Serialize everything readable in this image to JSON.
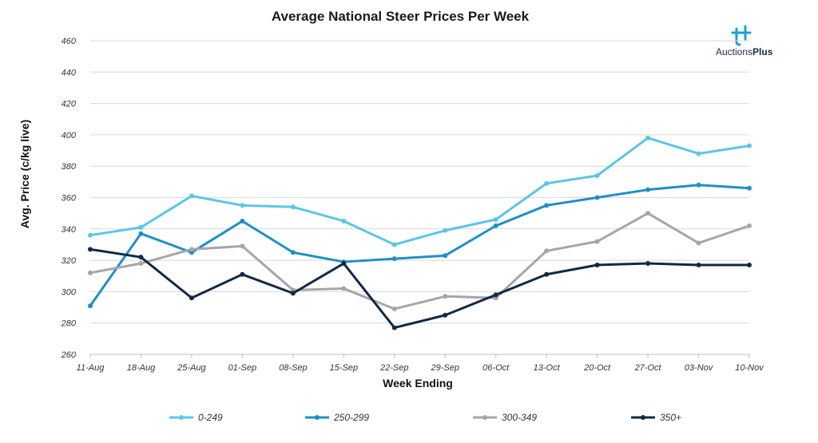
{
  "logo": {
    "text_light": "Auctions",
    "text_bold": "Plus",
    "color": "#1aa3d9"
  },
  "chart_data": {
    "type": "line",
    "title": "Average National Steer Prices Per Week",
    "xlabel": "Week Ending",
    "ylabel": "Avg. Price (c/kg live)",
    "ylim": [
      260,
      460
    ],
    "yticks": [
      260,
      280,
      300,
      320,
      340,
      360,
      380,
      400,
      420,
      440,
      460
    ],
    "grid": true,
    "legend_position": "bottom",
    "categories": [
      "11-Aug",
      "18-Aug",
      "25-Aug",
      "01-Sep",
      "08-Sep",
      "15-Sep",
      "22-Sep",
      "29-Sep",
      "06-Oct",
      "13-Oct",
      "20-Oct",
      "27-Oct",
      "03-Nov",
      "10-Nov"
    ],
    "series": [
      {
        "name": "0-249",
        "color": "#5bc6e8",
        "values": [
          336,
          341,
          361,
          355,
          354,
          345,
          330,
          339,
          346,
          369,
          374,
          398,
          388,
          393
        ]
      },
      {
        "name": "250-299",
        "color": "#1f8fc8",
        "values": [
          291,
          337,
          325,
          345,
          325,
          319,
          321,
          323,
          342,
          355,
          360,
          365,
          368,
          366
        ]
      },
      {
        "name": "300-349",
        "color": "#a6a6a6",
        "values": [
          312,
          318,
          327,
          329,
          301,
          302,
          289,
          297,
          296,
          326,
          332,
          350,
          331,
          342
        ]
      },
      {
        "name": "350+",
        "color": "#0e2a47",
        "values": [
          327,
          322,
          296,
          311,
          299,
          318,
          277,
          285,
          298,
          311,
          317,
          318,
          317,
          317
        ]
      }
    ]
  }
}
